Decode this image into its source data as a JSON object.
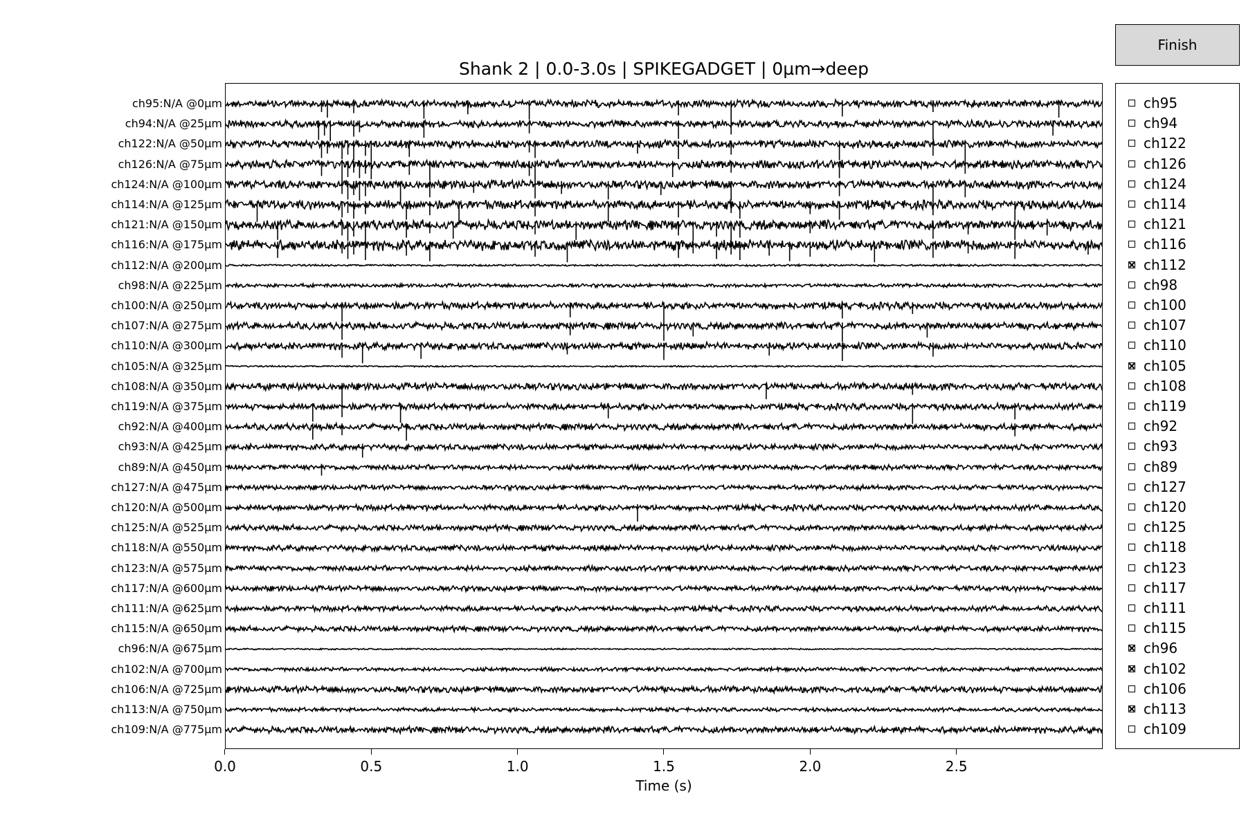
{
  "title": "Shank 2 | 0.0-3.0s | SPIKEGADGET | 0µm→deep",
  "finish_button": {
    "label": "Finish"
  },
  "colors": {
    "trace": "#000000",
    "button_bg": "#d9d9d9",
    "background": "#ffffff"
  },
  "chart_data": {
    "type": "line",
    "title": "Shank 2 | 0.0-3.0s | SPIKEGADGET | 0µm→deep",
    "xlabel": "Time (s)",
    "ylabel": "",
    "xlim": [
      0.0,
      3.0
    ],
    "x_ticks": [
      "0.0",
      "0.5",
      "1.0",
      "1.5",
      "2.0",
      "2.5"
    ],
    "x_tick_values": [
      0.0,
      0.5,
      1.0,
      1.5,
      2.0,
      2.5
    ],
    "grid": false,
    "legend": "none",
    "series": [
      {
        "name": "ch95:N/A @0µm",
        "noise": 0.55,
        "spikes": [
          0.33,
          0.35,
          0.44,
          0.68,
          0.83,
          1.04,
          1.55,
          1.73,
          2.11,
          2.42,
          2.85
        ]
      },
      {
        "name": "ch94:N/A @25µm",
        "noise": 0.55,
        "spikes": [
          0.32,
          0.34,
          0.36,
          0.44,
          0.46,
          0.68,
          1.04,
          1.55,
          1.73,
          2.42,
          2.83
        ]
      },
      {
        "name": "ch122:N/A @50µm",
        "noise": 0.6,
        "spikes": [
          0.33,
          0.35,
          0.4,
          0.42,
          0.44,
          0.48,
          0.5,
          0.63,
          1.04,
          1.06,
          1.41,
          1.55,
          1.73,
          2.1,
          2.42,
          2.53
        ]
      },
      {
        "name": "ch126:N/A @75µm",
        "noise": 0.65,
        "spikes": [
          0.33,
          0.4,
          0.42,
          0.44,
          0.46,
          0.48,
          0.5,
          0.63,
          0.7,
          1.04,
          1.06,
          1.53,
          1.73,
          2.1,
          2.53
        ]
      },
      {
        "name": "ch124:N/A @100µm",
        "noise": 0.65,
        "spikes": [
          0.4,
          0.42,
          0.44,
          0.46,
          0.48,
          0.6,
          0.7,
          0.85,
          1.06,
          1.15,
          1.31,
          1.49,
          1.73,
          2.1,
          2.42,
          2.53
        ]
      },
      {
        "name": "ch114:N/A @125µm",
        "noise": 0.7,
        "spikes": [
          0.11,
          0.4,
          0.42,
          0.44,
          0.48,
          0.62,
          0.7,
          0.8,
          1.06,
          1.31,
          1.55,
          1.73,
          1.76,
          2.0,
          2.1,
          2.42,
          2.7
        ]
      },
      {
        "name": "ch121:N/A @150µm",
        "noise": 0.75,
        "spikes": [
          0.18,
          0.4,
          0.42,
          0.44,
          0.48,
          0.62,
          0.7,
          0.78,
          1.06,
          1.2,
          1.55,
          1.6,
          1.68,
          1.73,
          1.76,
          2.0,
          2.42,
          2.54,
          2.7,
          2.81
        ]
      },
      {
        "name": "ch116:N/A @175µm",
        "noise": 0.8,
        "spikes": [
          0.18,
          0.4,
          0.42,
          0.44,
          0.48,
          0.62,
          0.7,
          1.06,
          1.17,
          1.55,
          1.6,
          1.68,
          1.73,
          1.76,
          1.86,
          1.93,
          2.0,
          2.22,
          2.42,
          2.54,
          2.7,
          2.95
        ]
      },
      {
        "name": "ch112:N/A @200µm",
        "noise": 0.15,
        "spikes": []
      },
      {
        "name": "ch98:N/A @225µm",
        "noise": 0.28,
        "spikes": []
      },
      {
        "name": "ch100:N/A @250µm",
        "noise": 0.55,
        "spikes": [
          0.4,
          1.18,
          1.5,
          2.11,
          2.35
        ]
      },
      {
        "name": "ch107:N/A @275µm",
        "noise": 0.55,
        "spikes": [
          0.4,
          1.18,
          1.5,
          1.6,
          2.11,
          2.4
        ]
      },
      {
        "name": "ch110:N/A @300µm",
        "noise": 0.55,
        "spikes": [
          0.4,
          0.47,
          0.67,
          1.17,
          1.5,
          1.86,
          2.11,
          2.42
        ]
      },
      {
        "name": "ch105:N/A @325µm",
        "noise": 0.12,
        "spikes": []
      },
      {
        "name": "ch108:N/A @350µm",
        "noise": 0.55,
        "spikes": [
          0.4,
          1.85,
          2.35
        ]
      },
      {
        "name": "ch119:N/A @375µm",
        "noise": 0.5,
        "spikes": [
          0.3,
          0.4,
          0.6,
          1.31,
          2.35,
          2.7
        ]
      },
      {
        "name": "ch92:N/A @400µm",
        "noise": 0.5,
        "spikes": [
          0.3,
          0.4,
          0.62,
          2.7
        ]
      },
      {
        "name": "ch93:N/A @425µm",
        "noise": 0.45,
        "spikes": [
          0.47
        ]
      },
      {
        "name": "ch89:N/A @450µm",
        "noise": 0.4,
        "spikes": [
          0.33
        ]
      },
      {
        "name": "ch127:N/A @475µm",
        "noise": 0.38,
        "spikes": []
      },
      {
        "name": "ch120:N/A @500µm",
        "noise": 0.45,
        "spikes": [
          1.41
        ]
      },
      {
        "name": "ch125:N/A @525µm",
        "noise": 0.45,
        "spikes": []
      },
      {
        "name": "ch118:N/A @550µm",
        "noise": 0.45,
        "spikes": []
      },
      {
        "name": "ch123:N/A @575µm",
        "noise": 0.42,
        "spikes": []
      },
      {
        "name": "ch117:N/A @600µm",
        "noise": 0.42,
        "spikes": []
      },
      {
        "name": "ch111:N/A @625µm",
        "noise": 0.42,
        "spikes": []
      },
      {
        "name": "ch115:N/A @650µm",
        "noise": 0.42,
        "spikes": []
      },
      {
        "name": "ch96:N/A @675µm",
        "noise": 0.12,
        "spikes": []
      },
      {
        "name": "ch102:N/A @700µm",
        "noise": 0.3,
        "spikes": []
      },
      {
        "name": "ch106:N/A @725µm",
        "noise": 0.5,
        "spikes": []
      },
      {
        "name": "ch113:N/A @750µm",
        "noise": 0.3,
        "spikes": []
      },
      {
        "name": "ch109:N/A @775µm",
        "noise": 0.5,
        "spikes": []
      }
    ]
  },
  "channel_panel": {
    "items": [
      {
        "label": "ch95",
        "checked": false
      },
      {
        "label": "ch94",
        "checked": false
      },
      {
        "label": "ch122",
        "checked": false
      },
      {
        "label": "ch126",
        "checked": false
      },
      {
        "label": "ch124",
        "checked": false
      },
      {
        "label": "ch114",
        "checked": false
      },
      {
        "label": "ch121",
        "checked": false
      },
      {
        "label": "ch116",
        "checked": false
      },
      {
        "label": "ch112",
        "checked": true
      },
      {
        "label": "ch98",
        "checked": false
      },
      {
        "label": "ch100",
        "checked": false
      },
      {
        "label": "ch107",
        "checked": false
      },
      {
        "label": "ch110",
        "checked": false
      },
      {
        "label": "ch105",
        "checked": true
      },
      {
        "label": "ch108",
        "checked": false
      },
      {
        "label": "ch119",
        "checked": false
      },
      {
        "label": "ch92",
        "checked": false
      },
      {
        "label": "ch93",
        "checked": false
      },
      {
        "label": "ch89",
        "checked": false
      },
      {
        "label": "ch127",
        "checked": false
      },
      {
        "label": "ch120",
        "checked": false
      },
      {
        "label": "ch125",
        "checked": false
      },
      {
        "label": "ch118",
        "checked": false
      },
      {
        "label": "ch123",
        "checked": false
      },
      {
        "label": "ch117",
        "checked": false
      },
      {
        "label": "ch111",
        "checked": false
      },
      {
        "label": "ch115",
        "checked": false
      },
      {
        "label": "ch96",
        "checked": true
      },
      {
        "label": "ch102",
        "checked": true
      },
      {
        "label": "ch106",
        "checked": false
      },
      {
        "label": "ch113",
        "checked": true
      },
      {
        "label": "ch109",
        "checked": false
      }
    ]
  }
}
